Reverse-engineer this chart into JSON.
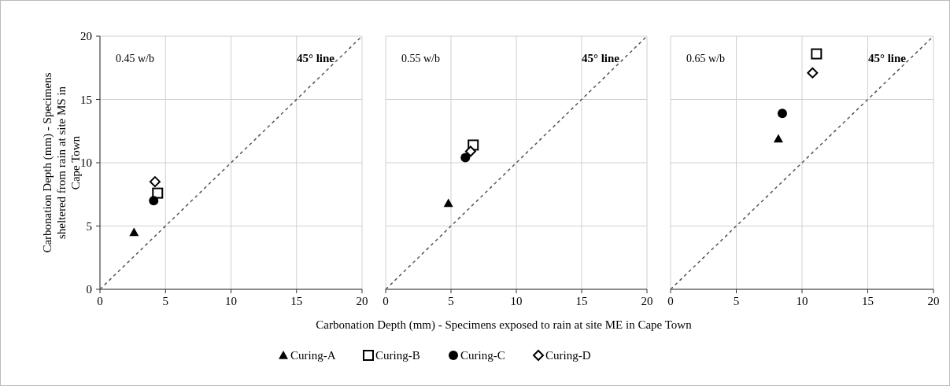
{
  "chart_data": [
    {
      "type": "scatter",
      "ylabel": "Carbonation Depth (mm)  - Specimens sheltered from  rain at site MS in Cape Town",
      "xlim": [
        0,
        20
      ],
      "ylim": [
        0,
        20
      ],
      "xticks": [
        0,
        5,
        10,
        15,
        20
      ],
      "yticks": [
        0,
        5,
        10,
        15,
        20
      ],
      "grid": true,
      "annotations": [
        "0.45  w/b",
        "45° line"
      ],
      "series": [
        {
          "color": "#000000",
          "marker": "triangle",
          "x": [
            2.6
          ],
          "values": [
            4.5
          ]
        },
        {
          "color": "#000000",
          "marker": "square",
          "x": [
            4.4
          ],
          "values": [
            7.6
          ]
        },
        {
          "color": "#000000",
          "marker": "circle",
          "x": [
            4.1
          ],
          "values": [
            7.0
          ]
        },
        {
          "color": "#000000",
          "marker": "diamond",
          "x": [
            4.2
          ],
          "values": [
            8.5
          ]
        },
        {
          "type": "line",
          "color": "#555555",
          "line_style": "dashed",
          "marker": "none",
          "x": [
            0,
            20
          ],
          "values": [
            0,
            20
          ]
        }
      ]
    },
    {
      "type": "scatter",
      "xlabel": "Carbonation Depth (mm)  - Specimens exposed to rain at site ME in Cape Town",
      "xlim": [
        0,
        20
      ],
      "ylim": [
        0,
        20
      ],
      "xticks": [
        0,
        5,
        10,
        15,
        20
      ],
      "yticks": [
        0,
        5,
        10,
        15,
        20
      ],
      "grid": true,
      "legend": "bottom",
      "tick_labels": "x",
      "annotations": [
        "0.55  w/b",
        "45° line"
      ],
      "series": [
        {
          "name": "Curing-A",
          "color": "#000000",
          "marker": "triangle",
          "x": [
            4.8
          ],
          "values": [
            6.8
          ]
        },
        {
          "name": "Curing-B",
          "color": "#000000",
          "marker": "square",
          "x": [
            6.7
          ],
          "values": [
            11.4
          ]
        },
        {
          "name": "Curing-C",
          "color": "#000000",
          "marker": "circle",
          "x": [
            6.1
          ],
          "values": [
            10.4
          ]
        },
        {
          "name": "Curing-D",
          "color": "#000000",
          "marker": "diamond",
          "x": [
            6.5
          ],
          "values": [
            10.9
          ]
        },
        {
          "type": "line",
          "color": "#555555",
          "line_style": "dashed",
          "marker": "none",
          "x": [
            0,
            20
          ],
          "values": [
            0,
            20
          ]
        }
      ]
    },
    {
      "type": "scatter",
      "xlim": [
        0,
        20
      ],
      "ylim": [
        0,
        20
      ],
      "xticks": [
        0,
        5,
        10,
        15,
        20
      ],
      "yticks": [
        0,
        5,
        10,
        15,
        20
      ],
      "grid": true,
      "tick_labels": "x",
      "annotations": [
        "0.65  w/b",
        "45° line"
      ],
      "series": [
        {
          "color": "#000000",
          "marker": "triangle",
          "x": [
            8.2
          ],
          "values": [
            11.9
          ]
        },
        {
          "color": "#000000",
          "marker": "square",
          "x": [
            11.1
          ],
          "values": [
            18.6
          ]
        },
        {
          "color": "#000000",
          "marker": "circle",
          "x": [
            8.5
          ],
          "values": [
            13.9
          ]
        },
        {
          "color": "#000000",
          "marker": "diamond",
          "x": [
            10.8
          ],
          "values": [
            17.1
          ]
        },
        {
          "type": "line",
          "color": "#555555",
          "line_style": "dashed",
          "marker": "none",
          "x": [
            0,
            20
          ],
          "values": [
            0,
            20
          ]
        }
      ]
    }
  ]
}
